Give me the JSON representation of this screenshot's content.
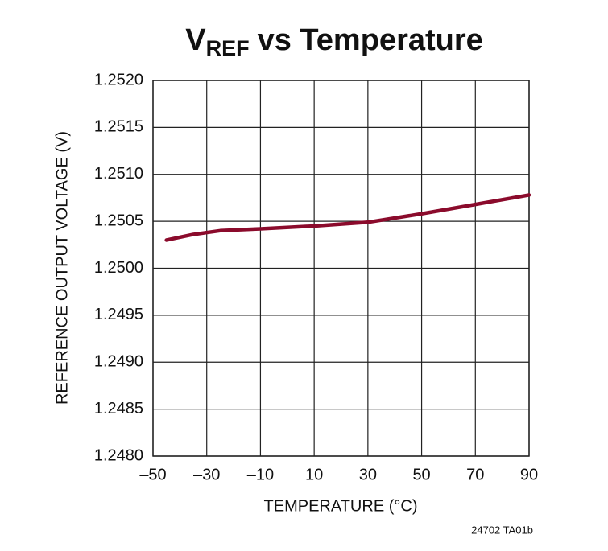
{
  "chart_data": {
    "type": "line",
    "title": "V",
    "title_subscript": "REF",
    "title_rest": "vs Temperature",
    "x_label": "TEMPERATURE (°C)",
    "y_label": "REFERENCE OUTPUT VOLTAGE (V)",
    "footnote": "24702 TA01b",
    "x": [
      -45,
      -35,
      -25,
      -10,
      10,
      30,
      50,
      70,
      90
    ],
    "series": [
      {
        "name": "VREF",
        "color": "#8b0b2c",
        "values": [
          1.2503,
          1.25036,
          1.2504,
          1.25042,
          1.25045,
          1.25049,
          1.25058,
          1.25068,
          1.25078
        ]
      }
    ],
    "xlim": [
      -50,
      90
    ],
    "xticks": [
      {
        "value": -50,
        "label": "–50"
      },
      {
        "value": -30,
        "label": "–30"
      },
      {
        "value": -10,
        "label": "–10"
      },
      10,
      30,
      50,
      70,
      90
    ],
    "ylim": [
      1.248,
      1.252
    ],
    "yticks": [
      {
        "value": 1.248,
        "label": "1.2480"
      },
      {
        "value": 1.2485,
        "label": "1.2485"
      },
      {
        "value": 1.249,
        "label": "1.2490"
      },
      {
        "value": 1.2495,
        "label": "1.2495"
      },
      {
        "value": 1.25,
        "label": "1.2500"
      },
      {
        "value": 1.2505,
        "label": "1.2505"
      },
      {
        "value": 1.251,
        "label": "1.2510"
      },
      {
        "value": 1.2515,
        "label": "1.2515"
      },
      {
        "value": 1.252,
        "label": "1.2520"
      }
    ],
    "grid": true
  }
}
